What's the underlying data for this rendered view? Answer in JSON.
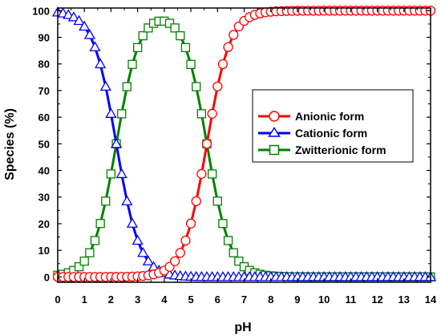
{
  "chart_data": {
    "type": "line",
    "xlabel": "pH",
    "ylabel": "Species (%)",
    "xlim": [
      0,
      14
    ],
    "ylim": [
      -2,
      101
    ],
    "xticks": [
      "0",
      "1",
      "2",
      "3",
      "4",
      "5",
      "6",
      "7",
      "8",
      "9",
      "10",
      "11",
      "12",
      "13",
      "14"
    ],
    "yticks": [
      "0",
      "10",
      "20",
      "30",
      "40",
      "50",
      "60",
      "70",
      "80",
      "90",
      "100"
    ],
    "grid": false,
    "legend_position": "right-middle",
    "pKa1": 2.2,
    "pKa2": 5.6,
    "step": 0.2,
    "series": [
      {
        "name": "Anionic form",
        "color": "#ff0000",
        "marker": "circle",
        "species": "anionic"
      },
      {
        "name": "Cationic form",
        "color": "#0000ff",
        "marker": "triangle",
        "species": "cationic"
      },
      {
        "name": "Zwitterionic form",
        "color": "#008000",
        "marker": "square",
        "species": "zwitterionic"
      }
    ]
  }
}
